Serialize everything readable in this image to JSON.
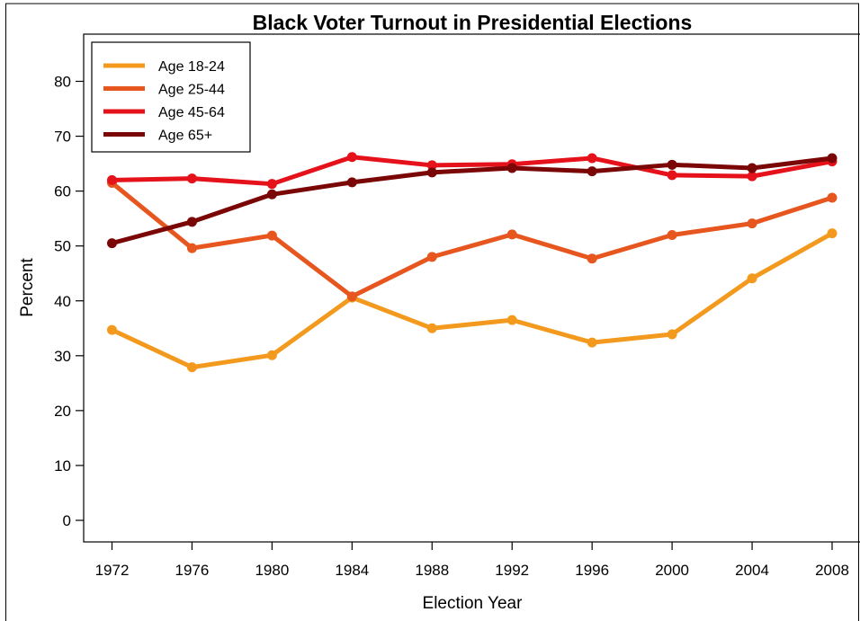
{
  "chart_data": {
    "type": "line",
    "title": "Black Voter Turnout in Presidential Elections",
    "xlabel": "Election Year",
    "ylabel": "Percent",
    "x": [
      1972,
      1976,
      1980,
      1984,
      1988,
      1992,
      1996,
      2000,
      2004,
      2008
    ],
    "x_tick_labels": [
      "1972",
      "1976",
      "1980",
      "1984",
      "1988",
      "1992",
      "1996",
      "2000",
      "2004",
      "2008"
    ],
    "y_ticks": [
      0,
      10,
      20,
      30,
      40,
      50,
      60,
      70,
      80
    ],
    "y_tick_labels": [
      "0",
      "10",
      "20",
      "30",
      "40",
      "50",
      "60",
      "70",
      "80"
    ],
    "ylim": [
      -3,
      87
    ],
    "xlim": [
      1971,
      2009
    ],
    "grid": false,
    "legend_position": "top-left",
    "series": [
      {
        "name": "Age 18-24",
        "color": "#f39a1e",
        "values": [
          34.7,
          27.9,
          30.1,
          40.6,
          35.0,
          36.5,
          32.4,
          33.9,
          44.1,
          52.3
        ]
      },
      {
        "name": "Age 25-44",
        "color": "#e6561e",
        "values": [
          61.5,
          49.6,
          51.9,
          40.8,
          48.0,
          52.1,
          47.7,
          52.0,
          54.1,
          58.8
        ]
      },
      {
        "name": "Age 45-64",
        "color": "#e5121b",
        "values": [
          62.0,
          62.3,
          61.3,
          66.2,
          64.7,
          64.9,
          66.0,
          62.9,
          62.7,
          65.4
        ]
      },
      {
        "name": "Age 65+",
        "color": "#7a0606",
        "values": [
          50.5,
          54.4,
          59.4,
          61.6,
          63.4,
          64.2,
          63.6,
          64.8,
          64.2,
          66.0
        ]
      }
    ]
  }
}
